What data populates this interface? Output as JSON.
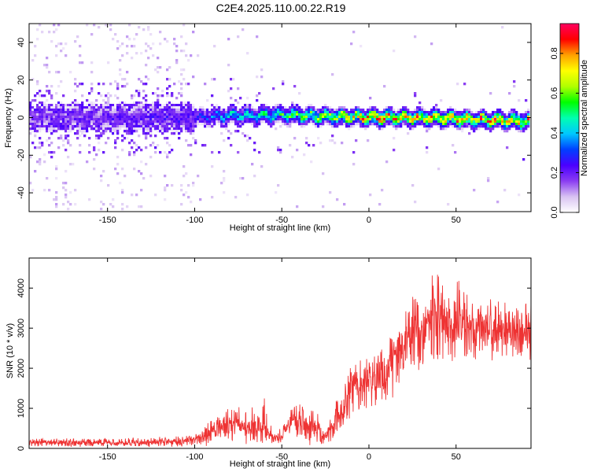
{
  "figure": {
    "title": "C2E4.2025.110.00.22.R19",
    "colors": {
      "snr": "#ee3333",
      "axis": "#000000",
      "background": "#ffffff"
    }
  },
  "chart_data": [
    {
      "type": "heatmap",
      "title": "",
      "xlabel": "Height of straight line (km)",
      "ylabel": "Frequency (Hz)",
      "xlim": [
        -195,
        93
      ],
      "ylim": [
        -50,
        50
      ],
      "x_ticks": [
        -150,
        -100,
        -50,
        0,
        50
      ],
      "x_tick_labels": [
        "-150",
        "-100",
        "-50",
        "0",
        "50"
      ],
      "y_ticks": [
        -40,
        -20,
        0,
        20,
        40
      ],
      "y_tick_labels": [
        "-40",
        "-20",
        "0",
        "20",
        "40"
      ],
      "colorbar": {
        "label": "Normalized spectral amplitude",
        "range": [
          0.0,
          0.95
        ],
        "ticks": [
          0.0,
          0.2,
          0.4,
          0.6,
          0.8
        ],
        "tick_labels": [
          "0.0",
          "0.2",
          "0.4",
          "0.6",
          "0.8"
        ],
        "colormap": [
          "#ffffff",
          "#d8c2f2",
          "#8a3cf2",
          "#4a00ff",
          "#0040ff",
          "#00c8ff",
          "#00ffb0",
          "#00ff00",
          "#b0ff00",
          "#ffff00",
          "#ffa000",
          "#ff0000",
          "#ff0060"
        ]
      },
      "ridge": {
        "description_points": [
          {
            "x": -195,
            "freq": 0.0,
            "amplitude": 0.18
          },
          {
            "x": -150,
            "freq": 0.0,
            "amplitude": 0.22
          },
          {
            "x": -100,
            "freq": 0.0,
            "amplitude": 0.25
          },
          {
            "x": -80,
            "freq": 1.0,
            "amplitude": 0.45
          },
          {
            "x": -50,
            "freq": 1.5,
            "amplitude": 0.55
          },
          {
            "x": -20,
            "freq": 0.5,
            "amplitude": 0.7
          },
          {
            "x": 0,
            "freq": 0.0,
            "amplitude": 0.85
          },
          {
            "x": 30,
            "freq": 0.0,
            "amplitude": 0.8
          },
          {
            "x": 60,
            "freq": -1.0,
            "amplitude": 0.85
          },
          {
            "x": 93,
            "freq": -2.0,
            "amplitude": 0.8
          }
        ]
      },
      "grid": false
    },
    {
      "type": "line",
      "title": "",
      "xlabel": "Height of straight line (km)",
      "ylabel": "SNR (10 * v/v)",
      "xlim": [
        -195,
        93
      ],
      "ylim": [
        0,
        4750
      ],
      "x_ticks": [
        -150,
        -100,
        -50,
        0,
        50
      ],
      "x_tick_labels": [
        "-150",
        "-100",
        "-50",
        "0",
        "50"
      ],
      "y_ticks": [
        0,
        1000,
        2000,
        3000,
        4000
      ],
      "y_tick_labels": [
        "0",
        "1000",
        "2000",
        "3000",
        "4000"
      ],
      "series": [
        {
          "color": "#ee3333",
          "envelope": {
            "x": [
              -195,
              -150,
              -110,
              -100,
              -90,
              -80,
              -70,
              -65,
              -60,
              -55,
              -50,
              -45,
              -40,
              -35,
              -30,
              -25,
              -20,
              -15,
              -10,
              -5,
              0,
              5,
              10,
              15,
              20,
              25,
              30,
              35,
              40,
              45,
              50,
              55,
              60,
              65,
              70,
              75,
              80,
              85,
              93
            ],
            "low": [
              50,
              50,
              50,
              80,
              150,
              200,
              200,
              150,
              100,
              50,
              150,
              250,
              300,
              200,
              150,
              50,
              300,
              500,
              800,
              1000,
              1000,
              1100,
              1300,
              1500,
              1800,
              2000,
              2100,
              2200,
              2200,
              2200,
              2200,
              2250,
              2200,
              2300,
              2300,
              2300,
              2300,
              2300,
              2300
            ],
            "high": [
              250,
              250,
              280,
              350,
              700,
              1000,
              900,
              1000,
              1100,
              400,
              500,
              1000,
              1100,
              1050,
              900,
              500,
              1000,
              1500,
              2100,
              2300,
              2300,
              2400,
              2600,
              3000,
              3300,
              3800,
              3600,
              4200,
              4500,
              3900,
              4100,
              3900,
              3700,
              3700,
              3700,
              3600,
              3700,
              3600,
              3700
            ]
          }
        }
      ],
      "grid": false
    }
  ]
}
